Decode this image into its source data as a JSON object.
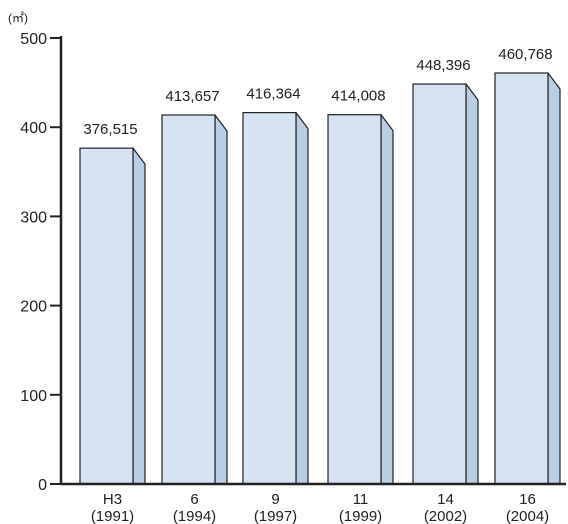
{
  "chart_data": {
    "type": "bar",
    "unit_label": "(㎡)",
    "categories": [
      {
        "line1": "H3",
        "line2": "(1991)"
      },
      {
        "line1": "6",
        "line2": "(1994)"
      },
      {
        "line1": "9",
        "line2": "(1997)"
      },
      {
        "line1": "11",
        "line2": "(1999)"
      },
      {
        "line1": "14",
        "line2": "(2002)"
      },
      {
        "line1": "16",
        "line2": "(2004)"
      }
    ],
    "values": [
      376.515,
      413.657,
      416.364,
      414.008,
      448.396,
      460.768
    ],
    "data_labels": [
      "376,515",
      "413,657",
      "416,364",
      "414,008",
      "448,396",
      "460,768"
    ],
    "ylim": [
      0,
      500
    ],
    "yticks": [
      0,
      100,
      200,
      300,
      400,
      500
    ],
    "ytick_labels": [
      "0",
      "100",
      "200",
      "300",
      "400",
      "500"
    ],
    "colors": {
      "bar_front": "#d5e3f2",
      "bar_side": "#b9cde3",
      "bar_stroke": "#222222",
      "axis": "#222222"
    }
  }
}
